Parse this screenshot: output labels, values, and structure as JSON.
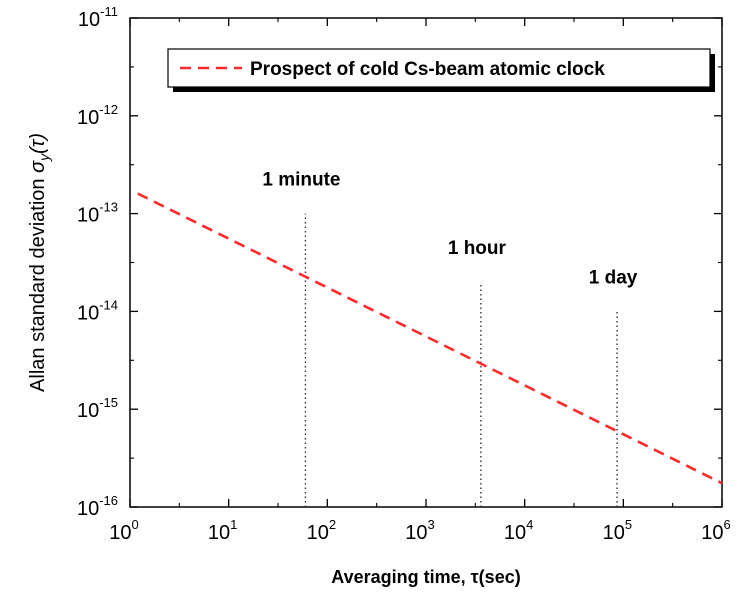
{
  "chart_data": {
    "type": "line",
    "x_scale": "log",
    "y_scale": "log",
    "xlim": [
      1,
      1000000
    ],
    "ylim": [
      1e-16,
      1e-11
    ],
    "x_ticks": [
      {
        "base": "10",
        "exp": "0",
        "value": 1
      },
      {
        "base": "10",
        "exp": "1",
        "value": 10
      },
      {
        "base": "10",
        "exp": "2",
        "value": 100
      },
      {
        "base": "10",
        "exp": "3",
        "value": 1000
      },
      {
        "base": "10",
        "exp": "4",
        "value": 10000
      },
      {
        "base": "10",
        "exp": "5",
        "value": 100000
      },
      {
        "base": "10",
        "exp": "6",
        "value": 1000000
      }
    ],
    "y_ticks": [
      {
        "base": "10",
        "exp": "-16",
        "value": 1e-16
      },
      {
        "base": "10",
        "exp": "-15",
        "value": 1e-15
      },
      {
        "base": "10",
        "exp": "-14",
        "value": 1e-14
      },
      {
        "base": "10",
        "exp": "-13",
        "value": 1e-13
      },
      {
        "base": "10",
        "exp": "-12",
        "value": 1e-12
      },
      {
        "base": "10",
        "exp": "-11",
        "value": 1e-11
      }
    ],
    "xlabel": "Averaging time, τ(sec)",
    "ylabel_main": "Allan standard deviation ",
    "ylabel_symbol": "σ",
    "ylabel_sub": "y",
    "ylabel_arg": "(τ)",
    "series": [
      {
        "name": "Prospect of cold Cs-beam atomic clock",
        "style": "dashed",
        "color": "#ff2a2a",
        "x": [
          1.2,
          1000000
        ],
        "y": [
          1.6e-13,
          1.75e-16
        ]
      }
    ],
    "markers": [
      {
        "label": "1 minute",
        "x": 60,
        "y_top": 1e-13
      },
      {
        "label": "1 hour",
        "x": 3600,
        "y_top": 2e-14
      },
      {
        "label": "1 day",
        "x": 86400,
        "y_top": 1e-14
      }
    ],
    "legend_position": "top-right",
    "grid": false
  }
}
